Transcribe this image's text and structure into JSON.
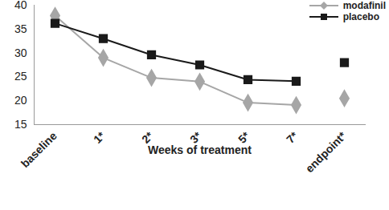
{
  "chart_data": {
    "type": "line",
    "x_label": "Weeks of treatment",
    "categories": [
      "baseline",
      "1*",
      "2*",
      "3*",
      "5*",
      "7*",
      "endpoint*"
    ],
    "series": [
      {
        "name": "modafinil",
        "color": "#a6a6a6",
        "marker": "diamond",
        "values": [
          37.8,
          29,
          24.8,
          24,
          19.6,
          19.1,
          20.5
        ]
      },
      {
        "name": "placebo",
        "color": "#1a1a1a",
        "marker": "square",
        "values": [
          36.2,
          33,
          29.6,
          27.5,
          24.4,
          24.1,
          28
        ]
      }
    ],
    "ylim": [
      15,
      40
    ],
    "yticks": [
      15,
      20,
      25,
      30,
      35,
      40
    ],
    "grid": false,
    "legend": "top-right"
  }
}
